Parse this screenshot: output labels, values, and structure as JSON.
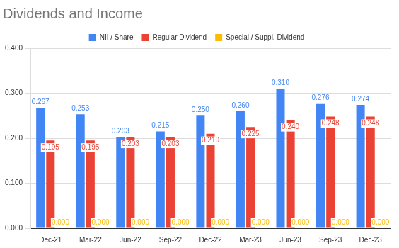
{
  "chart_data": {
    "type": "bar",
    "title": "Dividends and Income",
    "categories": [
      "Dec-21",
      "Mar-22",
      "Jun-22",
      "Sep-22",
      "Dec-22",
      "Mar-23",
      "Jun-23",
      "Sep-23",
      "Dec-23"
    ],
    "series": [
      {
        "name": "NII / Share",
        "color": "#4285f4",
        "values": [
          0.267,
          0.253,
          0.203,
          0.215,
          0.25,
          0.26,
          0.31,
          0.276,
          0.274
        ],
        "value_labels": [
          "0.267",
          "0.253",
          "0.203",
          "0.215",
          "0.250",
          "0.260",
          "0.310",
          "0.276",
          "0.274"
        ]
      },
      {
        "name": "Regular Dividend",
        "color": "#ea4335",
        "values": [
          0.195,
          0.195,
          0.203,
          0.203,
          0.21,
          0.225,
          0.24,
          0.248,
          0.248
        ],
        "value_labels": [
          "0.195",
          "0.195",
          "0.203",
          "0.203",
          "0.210",
          "0.225",
          "0.240",
          "0.248",
          "0.248"
        ]
      },
      {
        "name": "Special / Suppl. Dividend",
        "color": "#fbbc04",
        "values": [
          0,
          0,
          0,
          0,
          0,
          0,
          0,
          0,
          0
        ],
        "value_labels": [
          "0.000",
          "0.000",
          "0.000",
          "0.000",
          "0.000",
          "0.000",
          "0.000",
          "0.000",
          "0.000"
        ]
      }
    ],
    "ylim": [
      0,
      0.4
    ],
    "yticks": [
      {
        "value": 0,
        "label": "0.000"
      },
      {
        "value": 0.1,
        "label": "0.100"
      },
      {
        "value": 0.2,
        "label": "0.200"
      },
      {
        "value": 0.3,
        "label": "0.300"
      },
      {
        "value": 0.4,
        "label": "0.400"
      }
    ],
    "grid": true,
    "legend": "top",
    "data_labels": true
  }
}
